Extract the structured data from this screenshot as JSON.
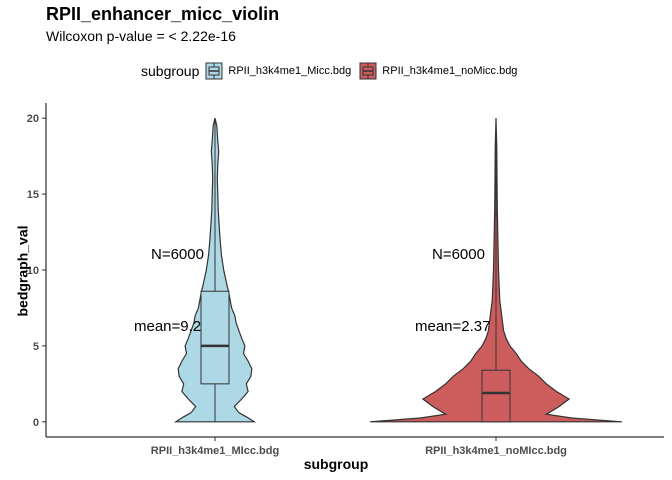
{
  "chart_data": {
    "type": "violin",
    "title": "RPII_enhancer_micc_violin",
    "subtitle": "Wilcoxon p-value = < 2.22e-16",
    "xlabel": "subgroup",
    "ylabel": "bedgraph_val",
    "ylim": [
      -1,
      21
    ],
    "yticks": [
      0,
      5,
      10,
      15,
      20
    ],
    "legend": {
      "title": "subgroup",
      "placement": "top"
    },
    "categories": [
      "RPII_h3k4me1_MIcc.bdg",
      "RPII_h3k4me1_noMIcc.bdg"
    ],
    "series": [
      {
        "name": "RPII_h3k4me1_Micc.bdg",
        "category": "RPII_h3k4me1_MIcc.bdg",
        "color": "#add8e6",
        "n_label": "N=6000",
        "mean_label": "mean=9.2",
        "box": {
          "q1": 2.5,
          "median": 5.0,
          "q3": 8.6,
          "whisker_low": 0,
          "whisker_high": 20
        },
        "density": [
          [
            0,
            0.85
          ],
          [
            0.3,
            0.7
          ],
          [
            0.6,
            0.52
          ],
          [
            1.0,
            0.42
          ],
          [
            1.5,
            0.58
          ],
          [
            2.0,
            0.72
          ],
          [
            2.5,
            0.68
          ],
          [
            3.0,
            0.78
          ],
          [
            3.5,
            0.8
          ],
          [
            4.0,
            0.72
          ],
          [
            4.5,
            0.62
          ],
          [
            5.0,
            0.65
          ],
          [
            5.5,
            0.58
          ],
          [
            6.0,
            0.52
          ],
          [
            6.5,
            0.46
          ],
          [
            7.0,
            0.43
          ],
          [
            7.5,
            0.36
          ],
          [
            8.0,
            0.33
          ],
          [
            8.5,
            0.3
          ],
          [
            9.0,
            0.26
          ],
          [
            10.0,
            0.19
          ],
          [
            11.0,
            0.14
          ],
          [
            12.0,
            0.11
          ],
          [
            13.0,
            0.09
          ],
          [
            14.0,
            0.07
          ],
          [
            15.0,
            0.06
          ],
          [
            16.0,
            0.05
          ],
          [
            17.0,
            0.06
          ],
          [
            17.8,
            0.08
          ],
          [
            18.5,
            0.06
          ],
          [
            19.5,
            0.04
          ],
          [
            20.0,
            0.0
          ]
        ]
      },
      {
        "name": "RPII_h3k4me1_noMicc.bdg",
        "category": "RPII_h3k4me1_noMIcc.bdg",
        "color": "#cd5c5c",
        "n_label": "N=6000",
        "mean_label": "mean=2.37",
        "box": {
          "q1": 0.0,
          "median": 1.9,
          "q3": 3.4,
          "whisker_low": 0,
          "whisker_high": 20
        },
        "density": [
          [
            0,
            1.0
          ],
          [
            0.25,
            0.6
          ],
          [
            0.5,
            0.4
          ],
          [
            1.0,
            0.5
          ],
          [
            1.5,
            0.58
          ],
          [
            2.0,
            0.48
          ],
          [
            2.5,
            0.4
          ],
          [
            3.0,
            0.34
          ],
          [
            3.5,
            0.26
          ],
          [
            4.0,
            0.2
          ],
          [
            4.5,
            0.16
          ],
          [
            5.0,
            0.11
          ],
          [
            5.5,
            0.08
          ],
          [
            6.0,
            0.06
          ],
          [
            7.0,
            0.045
          ],
          [
            8.0,
            0.03
          ],
          [
            9.0,
            0.025
          ],
          [
            10.0,
            0.02
          ],
          [
            12.0,
            0.015
          ],
          [
            14.0,
            0.01
          ],
          [
            16.0,
            0.008
          ],
          [
            18.0,
            0.006
          ],
          [
            20.0,
            0.0
          ]
        ]
      }
    ]
  }
}
